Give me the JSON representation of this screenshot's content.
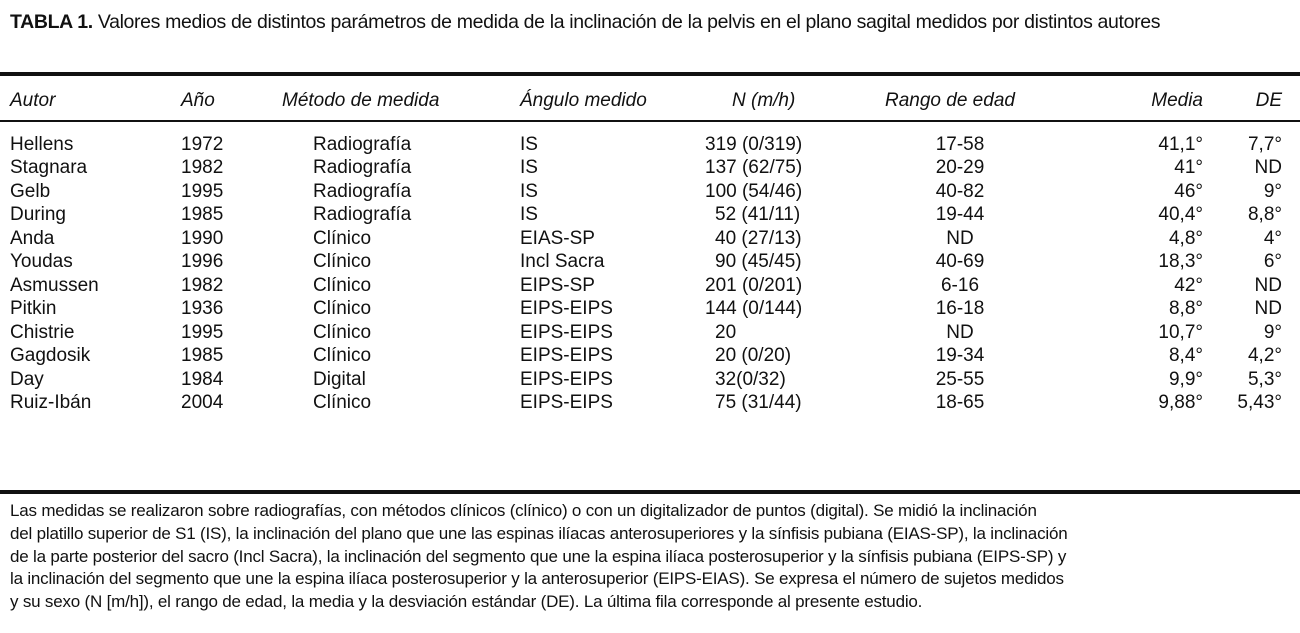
{
  "title": {
    "label": "TABLA 1.",
    "text": "Valores medios de distintos parámetros de medida de la inclinación de la pelvis en el plano sagital medidos por distintos autores"
  },
  "headers": [
    "Autor",
    "Año",
    "Método de medida",
    "Ángulo medido",
    "N (m/h)",
    "Rango de edad",
    "Media",
    "DE"
  ],
  "rows": [
    [
      "Hellens",
      "1972",
      "Radiografía",
      "IS",
      "319 (0/319)",
      "17-58",
      "41,1°",
      "7,7°"
    ],
    [
      "Stagnara",
      "1982",
      "Radiografía",
      "IS",
      "137 (62/75)",
      "20-29",
      "41°",
      "ND"
    ],
    [
      "Gelb",
      "1995",
      "Radiografía",
      "IS",
      "100 (54/46)",
      "40-82",
      "46°",
      "9°"
    ],
    [
      "During",
      "1985",
      "Radiografía",
      "IS",
      "52 (41/11)",
      "19-44",
      "40,4°",
      "8,8°"
    ],
    [
      "Anda",
      "1990",
      "Clínico",
      "EIAS-SP",
      "40 (27/13)",
      "ND",
      "4,8°",
      "4°"
    ],
    [
      "Youdas",
      "1996",
      "Clínico",
      "Incl Sacra",
      "90 (45/45)",
      "40-69",
      "18,3°",
      "6°"
    ],
    [
      "Asmussen",
      "1982",
      "Clínico",
      "EIPS-SP",
      "201 (0/201)",
      "6-16",
      "42°",
      "ND"
    ],
    [
      "Pitkin",
      "1936",
      "Clínico",
      "EIPS-EIPS",
      "144 (0/144)",
      "16-18",
      "8,8°",
      "ND"
    ],
    [
      "Chistrie",
      "1995",
      "Clínico",
      "EIPS-EIPS",
      "20",
      "ND",
      "10,7°",
      "9°"
    ],
    [
      "Gagdosik",
      "1985",
      "Clínico",
      "EIPS-EIPS",
      "20 (0/20)",
      "19-34",
      "8,4°",
      "4,2°"
    ],
    [
      "Day",
      "1984",
      "Digital",
      "EIPS-EIPS",
      "32(0/32)",
      "25-55",
      "9,9°",
      "5,3°"
    ],
    [
      "Ruiz-Ibán",
      "2004",
      "Clínico",
      "EIPS-EIPS",
      "75 (31/44)",
      "18-65",
      "9,88°",
      "5,43°"
    ]
  ],
  "footnote": [
    "Las medidas se realizaron sobre radiografías, con métodos clínicos (clínico) o con un digitalizador de puntos (digital). Se midió la inclinación",
    "del platillo superior de S1 (IS), la inclinación del plano que une las espinas ilíacas anterosuperiores y la sínfisis pubiana (EIAS-SP), la inclinación",
    "de la parte posterior del sacro (Incl Sacra), la inclinación del segmento que une la espina ilíaca posterosuperior y la sínfisis pubiana (EIPS-SP) y",
    "la inclinación del segmento que une la espina ilíaca posterosuperior y la anterosuperior (EIPS-EIAS). Se expresa el número de sujetos medidos",
    "y su sexo (N [m/h]), el rango de edad, la media y la desviación estándar (DE). La última fila corresponde al presente estudio."
  ]
}
